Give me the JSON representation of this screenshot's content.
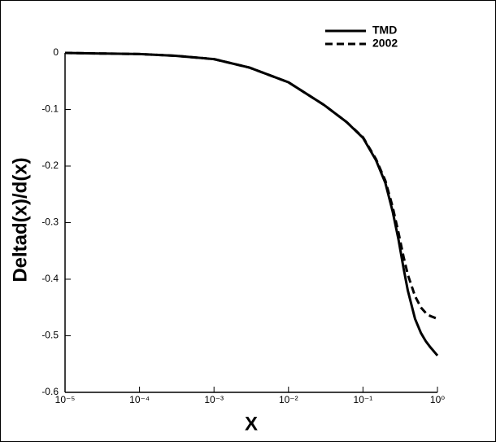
{
  "chart_data": {
    "type": "line",
    "x_label": "X",
    "y_label": "Deltad(x)/d(x)",
    "x_scale": "log",
    "xlim": [
      1e-05,
      1
    ],
    "xticks": [
      {
        "value": 1e-05,
        "label": "10⁻⁵"
      },
      {
        "value": 0.0001,
        "label": "10⁻⁴"
      },
      {
        "value": 0.001,
        "label": "10⁻³"
      },
      {
        "value": 0.01,
        "label": "10⁻²"
      },
      {
        "value": 0.1,
        "label": "10⁻¹"
      },
      {
        "value": 1,
        "label": "10⁰"
      }
    ],
    "ylim": [
      -0.6,
      0
    ],
    "yticks": [
      0,
      -0.1,
      -0.2,
      -0.3,
      -0.4,
      -0.5,
      -0.6
    ],
    "grid": false,
    "legend": "upper right",
    "x": [
      1e-05,
      3e-05,
      0.0001,
      0.0003,
      0.001,
      0.003,
      0.01,
      0.03,
      0.06,
      0.1,
      0.15,
      0.2,
      0.25,
      0.3,
      0.35,
      0.4,
      0.5,
      0.6,
      0.7,
      0.8,
      1
    ],
    "series": [
      {
        "name": "TMD",
        "color": "#000000",
        "dash": "solid",
        "values": [
          0,
          -0.001,
          -0.002,
          -0.005,
          -0.011,
          -0.026,
          -0.052,
          -0.092,
          -0.122,
          -0.15,
          -0.19,
          -0.23,
          -0.28,
          -0.33,
          -0.38,
          -0.42,
          -0.47,
          -0.495,
          -0.51,
          -0.52,
          -0.535
        ]
      },
      {
        "name": "2002",
        "color": "#000000",
        "dash": "dashed",
        "values": [
          0,
          -0.001,
          -0.002,
          -0.005,
          -0.011,
          -0.026,
          -0.052,
          -0.092,
          -0.122,
          -0.149,
          -0.188,
          -0.226,
          -0.272,
          -0.318,
          -0.36,
          -0.392,
          -0.43,
          -0.45,
          -0.46,
          -0.465,
          -0.47
        ]
      }
    ]
  }
}
